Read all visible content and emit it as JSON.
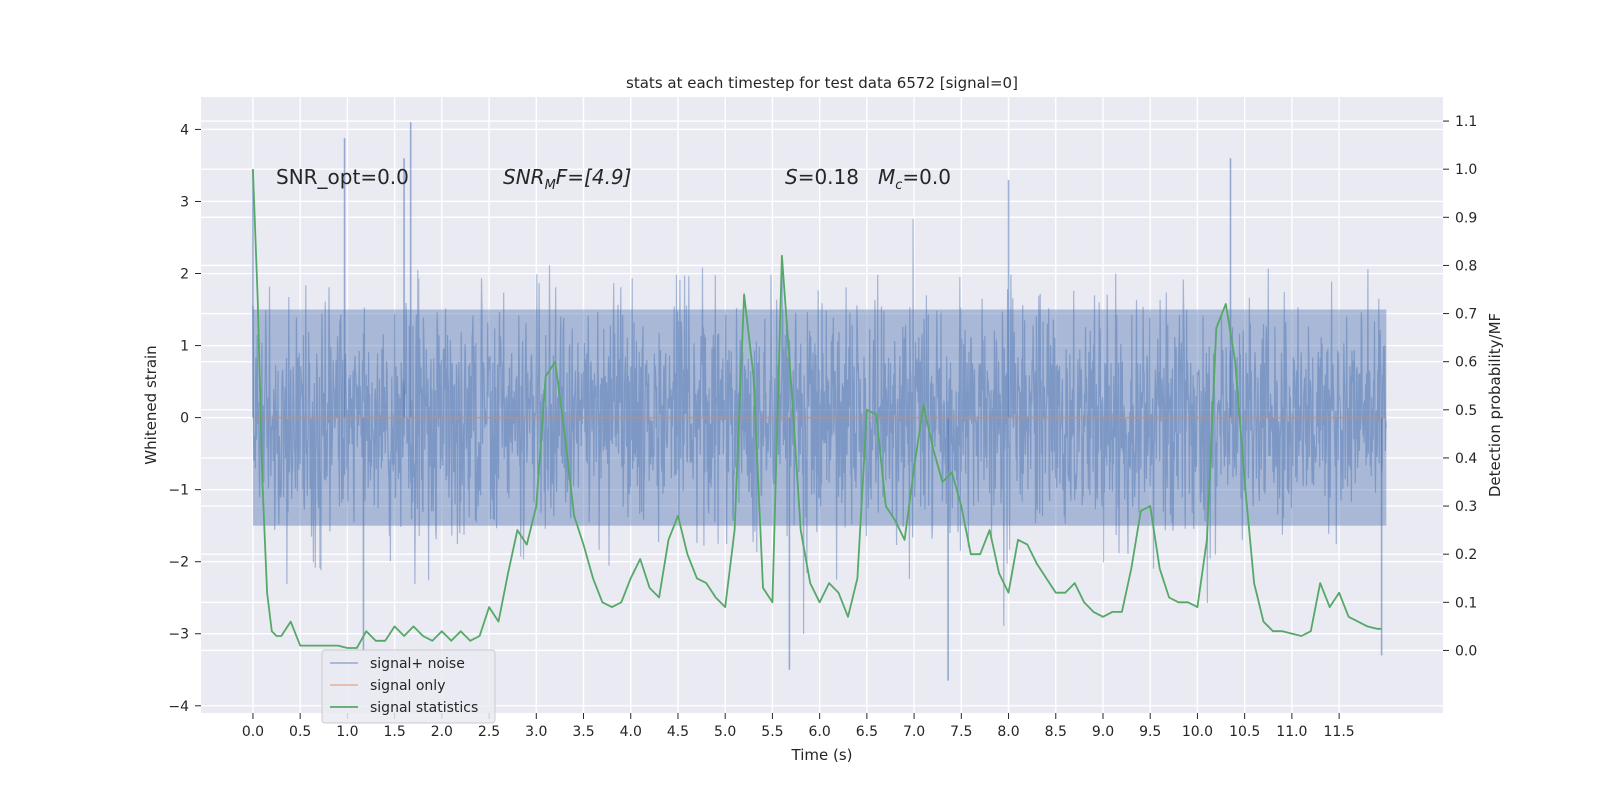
{
  "chart_data": {
    "type": "line",
    "title": "stats at each timestep for test data 6572 [signal=0]",
    "xlabel": "Time (s)",
    "ylabel": "Whitened strain",
    "y2label": "Detection probability/MF",
    "xlim": [
      -0.55,
      12.6
    ],
    "ylim": [
      -4.1,
      4.45
    ],
    "y2lim": [
      -0.13,
      1.15
    ],
    "x_ticks": [
      0.0,
      0.5,
      1.0,
      1.5,
      2.0,
      2.5,
      3.0,
      3.5,
      4.0,
      4.5,
      5.0,
      5.5,
      6.0,
      6.5,
      7.0,
      7.5,
      8.0,
      8.5,
      9.0,
      9.5,
      10.0,
      10.5,
      11.0,
      11.5
    ],
    "x_tick_labels": [
      "0.0",
      "0.5",
      "1.0",
      "1.5",
      "2.0",
      "2.5",
      "3.0",
      "3.5",
      "4.0",
      "4.5",
      "5.0",
      "5.5",
      "6.0",
      "6.5",
      "7.0",
      "7.5",
      "8.0",
      "8.5",
      "9.0",
      "9.5",
      "10.0",
      "10.5",
      "11.0",
      "11.5"
    ],
    "y_ticks": [
      4,
      3,
      2,
      1,
      0,
      -1,
      -2,
      -3,
      -4
    ],
    "y_tick_labels": [
      "4",
      "3",
      "2",
      "1",
      "0",
      "−1",
      "−2",
      "−3",
      "−4"
    ],
    "y2_ticks": [
      1.1,
      1.0,
      0.9,
      0.8,
      0.7,
      0.6,
      0.5,
      0.4,
      0.3,
      0.2,
      0.1,
      0.0
    ],
    "y2_tick_labels": [
      "1.1",
      "1.0",
      "0.9",
      "0.8",
      "0.7",
      "0.6",
      "0.5",
      "0.4",
      "0.3",
      "0.2",
      "0.1",
      "0.0"
    ],
    "grid": true,
    "legend_position": "lower-left",
    "annotations": {
      "snr_opt": "SNR_opt=0.0",
      "snr_mf": "SNR",
      "snr_mf_sub": "M",
      "snr_mf_tail": "F=[4.9]",
      "s_label": "S",
      "s_value": "=0.18",
      "mc_label": "M",
      "mc_sub": "c",
      "mc_value": "=0.0"
    },
    "series": [
      {
        "name": "signal+ noise",
        "color": "#4c72b0",
        "axis": "left",
        "x_range": [
          0.0,
          12.0
        ],
        "typical_envelope": [
          -1.5,
          1.5
        ],
        "extreme_range": [
          -3.65,
          4.1
        ],
        "peaks": [
          {
            "x": 0.0,
            "y": 3.45
          },
          {
            "x": 0.97,
            "y": 3.88
          },
          {
            "x": 1.67,
            "y": 4.1
          },
          {
            "x": 1.6,
            "y": 3.6
          },
          {
            "x": 10.35,
            "y": 3.6
          },
          {
            "x": 8.0,
            "y": 3.3
          },
          {
            "x": 1.17,
            "y": -3.25
          },
          {
            "x": 7.36,
            "y": -3.65
          },
          {
            "x": 5.68,
            "y": -3.5
          },
          {
            "x": 11.95,
            "y": -3.3
          }
        ]
      },
      {
        "name": "signal only",
        "color": "#dd8452",
        "axis": "left",
        "x": [
          0.0,
          12.0
        ],
        "y": [
          0.0,
          0.0
        ]
      },
      {
        "name": "signal statistics",
        "color": "#55a868",
        "axis": "right",
        "x": [
          0.0,
          0.05,
          0.1,
          0.15,
          0.2,
          0.25,
          0.3,
          0.4,
          0.5,
          0.6,
          0.7,
          0.8,
          0.9,
          1.0,
          1.1,
          1.2,
          1.3,
          1.4,
          1.5,
          1.6,
          1.7,
          1.8,
          1.9,
          2.0,
          2.1,
          2.2,
          2.3,
          2.4,
          2.5,
          2.6,
          2.7,
          2.8,
          2.9,
          3.0,
          3.1,
          3.2,
          3.3,
          3.4,
          3.5,
          3.6,
          3.7,
          3.8,
          3.9,
          4.0,
          4.1,
          4.2,
          4.3,
          4.4,
          4.5,
          4.6,
          4.7,
          4.8,
          4.9,
          5.0,
          5.1,
          5.2,
          5.3,
          5.4,
          5.5,
          5.6,
          5.7,
          5.8,
          5.9,
          6.0,
          6.1,
          6.2,
          6.3,
          6.4,
          6.5,
          6.6,
          6.7,
          6.8,
          6.9,
          7.0,
          7.1,
          7.2,
          7.3,
          7.4,
          7.5,
          7.6,
          7.7,
          7.8,
          7.9,
          8.0,
          8.1,
          8.2,
          8.3,
          8.4,
          8.5,
          8.6,
          8.7,
          8.8,
          8.9,
          9.0,
          9.1,
          9.2,
          9.3,
          9.4,
          9.5,
          9.6,
          9.7,
          9.8,
          9.9,
          10.0,
          10.1,
          10.2,
          10.3,
          10.4,
          10.5,
          10.6,
          10.7,
          10.8,
          10.9,
          11.0,
          11.1,
          11.2,
          11.3,
          11.4,
          11.5,
          11.6,
          11.7,
          11.8,
          11.9,
          11.95
        ],
        "y": [
          1.0,
          0.73,
          0.35,
          0.12,
          0.04,
          0.03,
          0.03,
          0.06,
          0.01,
          0.01,
          0.01,
          0.01,
          0.01,
          0.005,
          0.005,
          0.04,
          0.02,
          0.02,
          0.05,
          0.03,
          0.05,
          0.03,
          0.02,
          0.04,
          0.02,
          0.04,
          0.02,
          0.03,
          0.09,
          0.06,
          0.16,
          0.25,
          0.22,
          0.3,
          0.57,
          0.6,
          0.45,
          0.28,
          0.22,
          0.15,
          0.1,
          0.09,
          0.1,
          0.15,
          0.19,
          0.13,
          0.11,
          0.23,
          0.28,
          0.2,
          0.15,
          0.14,
          0.11,
          0.09,
          0.25,
          0.74,
          0.57,
          0.13,
          0.1,
          0.82,
          0.55,
          0.25,
          0.14,
          0.1,
          0.14,
          0.12,
          0.07,
          0.15,
          0.5,
          0.49,
          0.3,
          0.27,
          0.23,
          0.38,
          0.51,
          0.42,
          0.35,
          0.37,
          0.3,
          0.2,
          0.2,
          0.25,
          0.16,
          0.12,
          0.23,
          0.22,
          0.18,
          0.15,
          0.12,
          0.12,
          0.14,
          0.1,
          0.08,
          0.07,
          0.08,
          0.08,
          0.17,
          0.29,
          0.3,
          0.17,
          0.11,
          0.1,
          0.1,
          0.09,
          0.23,
          0.67,
          0.72,
          0.6,
          0.35,
          0.14,
          0.06,
          0.04,
          0.04,
          0.035,
          0.03,
          0.04,
          0.14,
          0.09,
          0.12,
          0.07,
          0.06,
          0.05,
          0.045,
          0.045
        ]
      }
    ]
  }
}
